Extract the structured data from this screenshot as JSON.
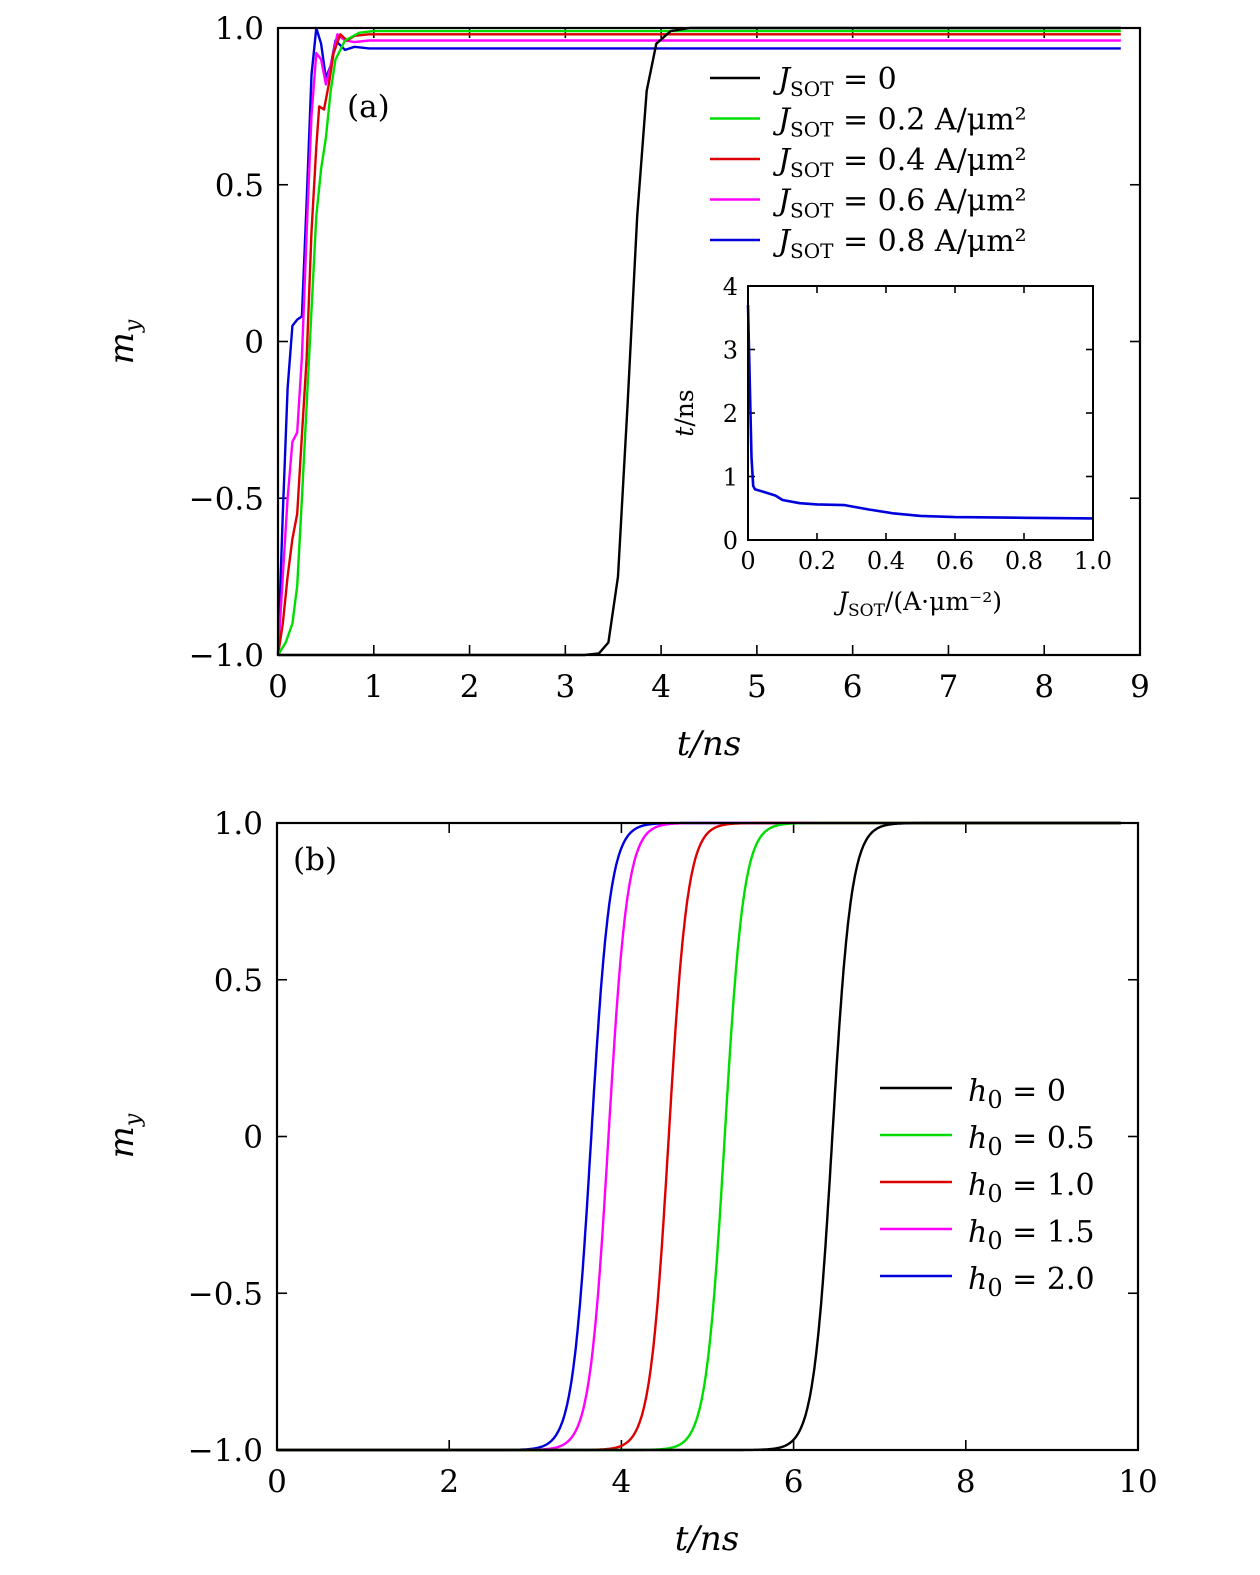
{
  "chart_data": [
    {
      "type": "line",
      "panel_label": "(a)",
      "xlabel": "t/ns",
      "ylabel": "m_y",
      "xlim": [
        0,
        9
      ],
      "ylim": [
        -1.0,
        1.0
      ],
      "x_ticks": [
        "0",
        "1",
        "2",
        "3",
        "4",
        "5",
        "6",
        "7",
        "8",
        "9"
      ],
      "y_ticks": [
        "−1.0",
        "−0.5",
        "0",
        "0.5",
        "1.0"
      ],
      "legend_position": "top-right",
      "series": [
        {
          "name": "J_SOT = 0",
          "color": "#000000",
          "points": [
            [
              0,
              -1.0
            ],
            [
              3.2,
              -1.0
            ],
            [
              3.35,
              -0.995
            ],
            [
              3.45,
              -0.96
            ],
            [
              3.55,
              -0.75
            ],
            [
              3.65,
              -0.2
            ],
            [
              3.75,
              0.4
            ],
            [
              3.85,
              0.8
            ],
            [
              3.95,
              0.95
            ],
            [
              4.1,
              0.99
            ],
            [
              4.3,
              1.0
            ],
            [
              8.8,
              1.0
            ]
          ]
        },
        {
          "name": "J_SOT = 0.2 A/μm²",
          "color": "#00dd00",
          "points": [
            [
              0,
              -1.0
            ],
            [
              0.08,
              -0.96
            ],
            [
              0.15,
              -0.9
            ],
            [
              0.2,
              -0.78
            ],
            [
              0.25,
              -0.5
            ],
            [
              0.3,
              -0.2
            ],
            [
              0.35,
              0.1
            ],
            [
              0.4,
              0.4
            ],
            [
              0.45,
              0.55
            ],
            [
              0.5,
              0.65
            ],
            [
              0.55,
              0.8
            ],
            [
              0.6,
              0.9
            ],
            [
              0.7,
              0.96
            ],
            [
              0.85,
              0.985
            ],
            [
              1.0,
              0.99
            ],
            [
              8.8,
              0.99
            ]
          ]
        },
        {
          "name": "J_SOT = 0.4 A/μm²",
          "color": "#dd0000",
          "points": [
            [
              0,
              -1.0
            ],
            [
              0.05,
              -0.9
            ],
            [
              0.1,
              -0.75
            ],
            [
              0.15,
              -0.63
            ],
            [
              0.2,
              -0.55
            ],
            [
              0.25,
              -0.3
            ],
            [
              0.3,
              -0.05
            ],
            [
              0.35,
              0.35
            ],
            [
              0.4,
              0.62
            ],
            [
              0.43,
              0.75
            ],
            [
              0.48,
              0.74
            ],
            [
              0.53,
              0.82
            ],
            [
              0.58,
              0.92
            ],
            [
              0.65,
              0.98
            ],
            [
              0.72,
              0.96
            ],
            [
              0.8,
              0.975
            ],
            [
              0.95,
              0.98
            ],
            [
              8.8,
              0.98
            ]
          ]
        },
        {
          "name": "J_SOT = 0.6 A/μm²",
          "color": "#ff00ff",
          "points": [
            [
              0,
              -1.0
            ],
            [
              0.05,
              -0.75
            ],
            [
              0.1,
              -0.5
            ],
            [
              0.15,
              -0.32
            ],
            [
              0.2,
              -0.29
            ],
            [
              0.25,
              -0.05
            ],
            [
              0.3,
              0.35
            ],
            [
              0.35,
              0.72
            ],
            [
              0.4,
              0.92
            ],
            [
              0.45,
              0.9
            ],
            [
              0.5,
              0.82
            ],
            [
              0.55,
              0.88
            ],
            [
              0.62,
              0.98
            ],
            [
              0.7,
              0.96
            ],
            [
              0.8,
              0.955
            ],
            [
              0.95,
              0.96
            ],
            [
              8.8,
              0.96
            ]
          ]
        },
        {
          "name": "J_SOT = 0.8 A/μm²",
          "color": "#0000dd",
          "points": [
            [
              0,
              -1.0
            ],
            [
              0.05,
              -0.55
            ],
            [
              0.1,
              -0.15
            ],
            [
              0.15,
              0.05
            ],
            [
              0.2,
              0.07
            ],
            [
              0.25,
              0.08
            ],
            [
              0.3,
              0.45
            ],
            [
              0.35,
              0.85
            ],
            [
              0.4,
              1.0
            ],
            [
              0.45,
              0.95
            ],
            [
              0.5,
              0.84
            ],
            [
              0.55,
              0.88
            ],
            [
              0.6,
              0.96
            ],
            [
              0.65,
              0.945
            ],
            [
              0.7,
              0.93
            ],
            [
              0.8,
              0.94
            ],
            [
              0.95,
              0.935
            ],
            [
              8.8,
              0.935
            ]
          ]
        }
      ],
      "inset": {
        "type": "line",
        "xlabel": "J_SOT/(A·μm⁻²)",
        "ylabel": "t/ns",
        "xlim": [
          0,
          1.0
        ],
        "ylim": [
          0,
          4
        ],
        "x_ticks": [
          "0",
          "0.2",
          "0.4",
          "0.6",
          "0.8",
          "1.0"
        ],
        "y_ticks": [
          "0",
          "1",
          "2",
          "3",
          "4"
        ],
        "color": "#0000dd",
        "points": [
          [
            0,
            3.7
          ],
          [
            0.01,
            1.3
          ],
          [
            0.015,
            0.85
          ],
          [
            0.02,
            0.8
          ],
          [
            0.05,
            0.75
          ],
          [
            0.08,
            0.7
          ],
          [
            0.1,
            0.63
          ],
          [
            0.15,
            0.58
          ],
          [
            0.2,
            0.56
          ],
          [
            0.28,
            0.55
          ],
          [
            0.35,
            0.48
          ],
          [
            0.42,
            0.42
          ],
          [
            0.5,
            0.38
          ],
          [
            0.6,
            0.36
          ],
          [
            0.8,
            0.35
          ],
          [
            1.0,
            0.34
          ]
        ]
      }
    },
    {
      "type": "line",
      "panel_label": "(b)",
      "xlabel": "t/ns",
      "ylabel": "m_y",
      "xlim": [
        0,
        10
      ],
      "ylim": [
        -1.0,
        1.0
      ],
      "x_ticks": [
        "0",
        "2",
        "4",
        "6",
        "8",
        "10"
      ],
      "y_ticks": [
        "−1.0",
        "−0.5",
        "0",
        "0.5",
        "1.0"
      ],
      "legend_position": "center-right",
      "series": [
        {
          "name": "h0 = 0",
          "color": "#000000",
          "center": 6.45,
          "width": 0.11,
          "x_end": 9.8
        },
        {
          "name": "h0 = 0.5",
          "color": "#00dd00",
          "center": 5.2,
          "width": 0.11,
          "x_end": 9.8
        },
        {
          "name": "h0 = 1.0",
          "color": "#dd0000",
          "center": 4.55,
          "width": 0.11,
          "x_end": 9.8
        },
        {
          "name": "h0 = 1.5",
          "color": "#ff00ff",
          "center": 3.85,
          "width": 0.11,
          "x_end": 9.8
        },
        {
          "name": "h0 = 2.0",
          "color": "#0000dd",
          "center": 3.65,
          "width": 0.11,
          "x_end": 9.8
        }
      ]
    }
  ]
}
